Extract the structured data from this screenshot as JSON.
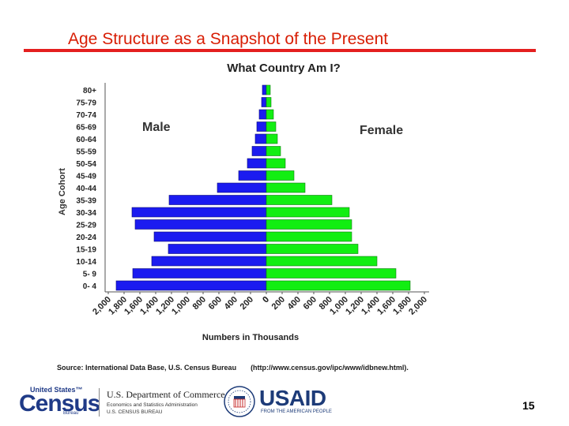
{
  "slide": {
    "title": "Age Structure as a Snapshot of the Present",
    "page_number": "15",
    "source_label": "Source:  International Data Base, U.S. Census Bureau",
    "source_url": "(http://www.census.gov/ipc/www/idbnew.html).",
    "accent_color": "#e41f1f"
  },
  "logos": {
    "census_top": "United States™",
    "census_word": "Census",
    "census_bureau": "Bureau",
    "doc_line1": "U.S. Department of Commerce",
    "doc_line2": "Economics and Statistics Administration",
    "doc_line3": "U.S. CENSUS BUREAU",
    "usaid_word": "USAID",
    "usaid_tag": "FROM THE AMERICAN PEOPLE"
  },
  "chart_data": {
    "type": "bar",
    "orientation": "horizontal-population-pyramid",
    "title": "What Country Am I?",
    "xlabel": "Numbers in Thousands",
    "ylabel": "Age Cohort",
    "xlim": [
      0,
      2000
    ],
    "male_label": "Male",
    "female_label": "Female",
    "male_color": "#1b1bf0",
    "female_color": "#12ee12",
    "x_ticks_male": [
      "2,000",
      "1,800",
      "1,600",
      "1,400",
      "1,200",
      "1,000",
      "800",
      "600",
      "400",
      "200",
      "0"
    ],
    "x_ticks_female": [
      "0",
      "200",
      "400",
      "600",
      "800",
      "1,000",
      "1,200",
      "1,400",
      "1,600",
      "1,800",
      "2,000"
    ],
    "categories": [
      "80+",
      "75-79",
      "70-74",
      "65-69",
      "60-64",
      "55-59",
      "50-54",
      "45-49",
      "40-44",
      "35-39",
      "30-34",
      "25-29",
      "20-24",
      "15-19",
      "10-14",
      "5- 9",
      "0- 4"
    ],
    "series": [
      {
        "name": "Male",
        "values": [
          50,
          60,
          90,
          120,
          140,
          180,
          240,
          350,
          620,
          1230,
          1700,
          1660,
          1420,
          1240,
          1450,
          1690,
          1900
        ]
      },
      {
        "name": "Female",
        "values": [
          50,
          60,
          90,
          120,
          140,
          180,
          240,
          350,
          490,
          830,
          1050,
          1080,
          1080,
          1160,
          1400,
          1640,
          1820
        ]
      }
    ]
  }
}
